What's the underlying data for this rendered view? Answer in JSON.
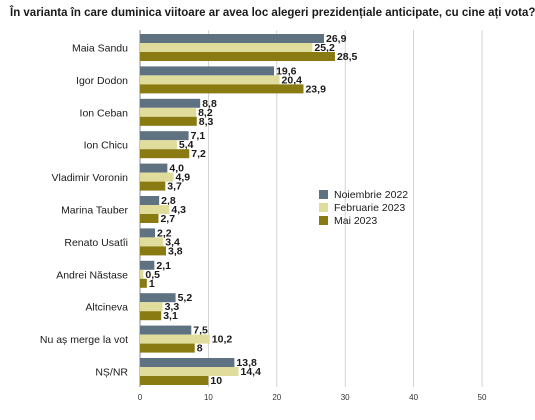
{
  "chart_data": {
    "type": "bar",
    "orientation": "horizontal",
    "title": "În varianta în care duminica viitoare ar avea loc alegeri prezidențiale anticipate, cu cine ați vota?",
    "categories": [
      "Maia Sandu",
      "Igor Dodon",
      "Ion Ceban",
      "Ion Chicu",
      "Vladimir Voronin",
      "Marina Tauber",
      "Renato Usatîi",
      "Andrei Năstase",
      "Altcineva",
      "Nu aș merge la vot",
      "NȘ/NR"
    ],
    "series": [
      {
        "name": "Noiembrie 2022",
        "color": "#5f7282",
        "values": [
          26.9,
          19.6,
          8.8,
          7.1,
          4.0,
          2.8,
          2.2,
          2.1,
          5.2,
          7.5,
          13.8
        ],
        "labels": [
          "26,9",
          "19,6",
          "8,8",
          "7,1",
          "4,0",
          "2,8",
          "2,2",
          "2,1",
          "5,2",
          "7,5",
          "13,8"
        ]
      },
      {
        "name": "Februarie 2023",
        "color": "#dfdc9c",
        "values": [
          25.2,
          20.4,
          8.2,
          5.4,
          4.9,
          4.3,
          3.4,
          0.5,
          3.3,
          10.2,
          14.4
        ],
        "labels": [
          "25,2",
          "20,4",
          "8,2",
          "5,4",
          "4,9",
          "4,3",
          "3,4",
          "0,5",
          "3,3",
          "10,2",
          "14,4"
        ]
      },
      {
        "name": "Mai 2023",
        "color": "#8a7a12",
        "values": [
          28.5,
          23.9,
          8.3,
          7.2,
          3.7,
          2.7,
          3.8,
          1,
          3.1,
          8,
          10
        ],
        "labels": [
          "28,5",
          "23,9",
          "8,3",
          "7,2",
          "3,7",
          "2,7",
          "3,8",
          "1",
          "3,1",
          "8",
          "10"
        ]
      }
    ],
    "xlim": [
      0,
      50
    ],
    "xticks": [
      "0",
      "10",
      "20",
      "30",
      "40",
      "50"
    ],
    "grid": true,
    "legend_position": "right"
  }
}
